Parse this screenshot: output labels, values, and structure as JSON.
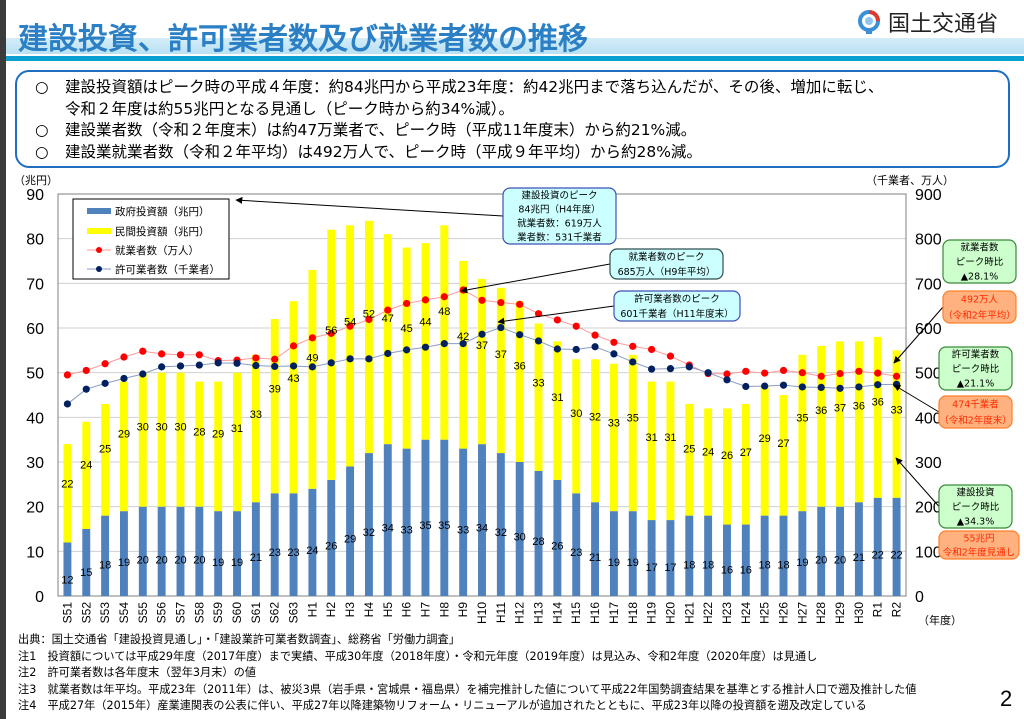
{
  "header": {
    "title": "建設投資、許可業者数及び就業者数の推移",
    "logo_icon": "mlit-logo-icon",
    "logo_text": "国土交通省"
  },
  "summary": {
    "bullet": "○",
    "lines": [
      "建設投資額はピーク時の平成４年度：約84兆円から平成23年度：約42兆円まで落ち込んだが、その後、増加に転じ、",
      "令和２年度は約55兆円となる見通し（ピーク時から約34%減）。",
      "建設業者数（令和２年度末）は約47万業者で、ピーク時（平成11年度末）から約21%減。",
      "建設業就業者数（令和２年平均）は492万人で、ピーク時（平成９年平均）から約28%減。"
    ]
  },
  "chart_data": {
    "type": "bar",
    "title": "建設投資、許可業者数及び就業者数の推移",
    "xlabel": "（年度）",
    "ylabel": "（兆円）",
    "y2label": "（千業者、万人）",
    "ylim": [
      0,
      90
    ],
    "y2lim": [
      0,
      900
    ],
    "yticks": [
      0,
      10,
      20,
      30,
      40,
      50,
      60,
      70,
      80,
      90
    ],
    "y2ticks": [
      0,
      100,
      200,
      300,
      400,
      500,
      600,
      700,
      800,
      900
    ],
    "grid": true,
    "legend_position": "top-left",
    "categories": [
      "S51",
      "S52",
      "S53",
      "S54",
      "S55",
      "S56",
      "S57",
      "S58",
      "S59",
      "S60",
      "S61",
      "S62",
      "S63",
      "H1",
      "H2",
      "H3",
      "H4",
      "H5",
      "H6",
      "H7",
      "H8",
      "H9",
      "H10",
      "H11",
      "H12",
      "H13",
      "H14",
      "H15",
      "H16",
      "H17",
      "H18",
      "H19",
      "H20",
      "H21",
      "H22",
      "H23",
      "H24",
      "H25",
      "H26",
      "H27",
      "H28",
      "H29",
      "H30",
      "R1",
      "R2"
    ],
    "series": [
      {
        "name": "政府投資額（兆円）",
        "kind": "stacked-bar",
        "axis": "left",
        "color": "#4f81bd",
        "values": [
          12,
          15,
          18,
          19,
          20,
          20,
          20,
          20,
          19,
          19,
          21,
          23,
          23,
          24,
          26,
          29,
          32,
          34,
          33,
          35,
          35,
          33,
          34,
          32,
          30,
          28,
          26,
          23,
          21,
          19,
          19,
          17,
          17,
          18,
          18,
          16,
          16,
          18,
          18,
          19,
          20,
          20,
          21,
          22,
          22
        ]
      },
      {
        "name": "民間投資額（兆円）",
        "kind": "stacked-bar",
        "axis": "left",
        "color": "#ffff00",
        "values": [
          22,
          24,
          25,
          29,
          30,
          30,
          30,
          28,
          29,
          31,
          33,
          39,
          43,
          49,
          56,
          54,
          52,
          47,
          45,
          44,
          48,
          42,
          37,
          37,
          36,
          33,
          31,
          30,
          32,
          33,
          35,
          31,
          31,
          25,
          24,
          26,
          27,
          29,
          27,
          35,
          36,
          37,
          36,
          36,
          33
        ]
      },
      {
        "name": "就業者数（万人）",
        "kind": "line",
        "axis": "right",
        "color": "#ff0000",
        "values": [
          495,
          505,
          520,
          535,
          548,
          542,
          540,
          540,
          527,
          528,
          533,
          530,
          560,
          578,
          588,
          604,
          619,
          640,
          655,
          663,
          670,
          685,
          662,
          657,
          653,
          632,
          618,
          604,
          584,
          568,
          559,
          552,
          537,
          517,
          498,
          497,
          503,
          499,
          505,
          500,
          492,
          498,
          503,
          499,
          492
        ]
      },
      {
        "name": "許可業者数（千業者）",
        "kind": "line",
        "axis": "right",
        "color": "#002060",
        "values": [
          430,
          463,
          476,
          487,
          497,
          513,
          515,
          517,
          522,
          521,
          516,
          514,
          515,
          513,
          522,
          531,
          531,
          543,
          551,
          557,
          565,
          565,
          586,
          601,
          585,
          571,
          553,
          552,
          558,
          542,
          524,
          508,
          509,
          513,
          500,
          484,
          469,
          470,
          472,
          468,
          467,
          465,
          468,
          473,
          474
        ]
      }
    ],
    "annotations": [
      {
        "id": "investment-peak",
        "lines": [
          "建設投資のピーク",
          "84兆円（H4年度）",
          "就業者数：619万人",
          "業者数：531千業者"
        ],
        "target": "H4",
        "style": "blue"
      },
      {
        "id": "workers-peak",
        "lines": [
          "就業者数のピーク",
          "685万人（H9年平均）"
        ],
        "target": "H9",
        "style": "cyan"
      },
      {
        "id": "firms-peak",
        "lines": [
          "許可業者数のピーク",
          "601千業者（H11年度末）"
        ],
        "target": "H11",
        "style": "blue"
      },
      {
        "id": "workers-ratio",
        "lines": [
          "就業者数",
          "ピーク時比",
          "▲28.1%"
        ],
        "style": "green"
      },
      {
        "id": "workers-current",
        "lines": [
          "492万人",
          "（令和2年平均）"
        ],
        "target": "R2",
        "style": "orange"
      },
      {
        "id": "firms-ratio",
        "lines": [
          "許可業者数",
          "ピーク時比",
          "▲21.1%"
        ],
        "style": "green"
      },
      {
        "id": "firms-current",
        "lines": [
          "474千業者",
          "（令和2年度末）"
        ],
        "target": "R2",
        "style": "orange"
      },
      {
        "id": "investment-ratio",
        "lines": [
          "建設投資",
          "ピーク時比",
          "▲34.3%"
        ],
        "style": "green"
      },
      {
        "id": "investment-current",
        "lines": [
          "55兆円",
          "令和2年度見通し"
        ],
        "target": "R2",
        "style": "orange"
      }
    ]
  },
  "footnotes": [
    "出典：国土交通省「建設投資見通し」・「建設業許可業者数調査」、総務省「労働力調査」",
    "注1　投資額については平成29年度（2017年度）まで実績、平成30年度（2018年度）・令和元年度（2019年度）は見込み、令和2年度（2020年度）は見通し",
    "注2　許可業者数は各年度末（翌年3月末）の値",
    "注3　就業者数は年平均。平成23年（2011年）は、被災3県（岩手県・宮城県・福島県）を補完推計した値について平成22年国勢調査結果を基準とする推計人口で遡及推計した値",
    "注4　平成27年（2015年）産業連関表の公表に伴い、平成27年以降建築物リフォーム・リニューアルが追加されたとともに、平成23年以降の投資額を遡及改定している"
  ],
  "page_number": "2"
}
